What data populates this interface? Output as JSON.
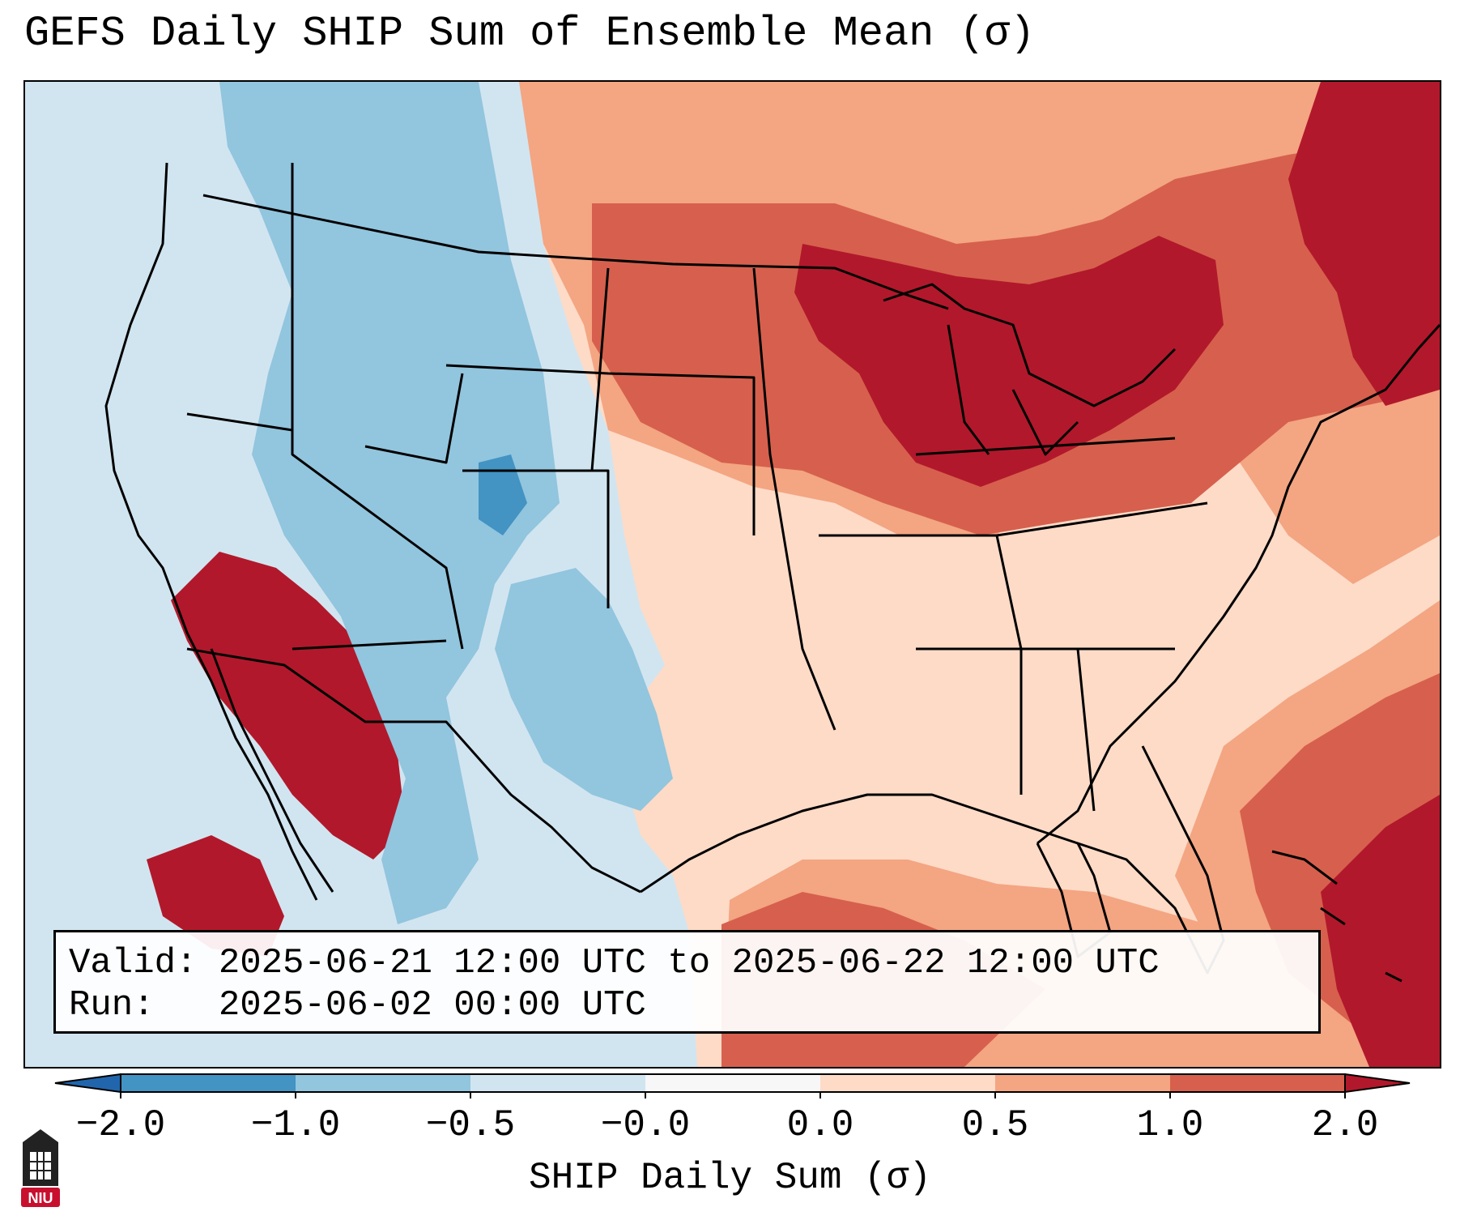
{
  "title": "GEFS Daily SHIP Sum of Ensemble Mean (σ)",
  "info": {
    "valid_label": "Valid:",
    "valid_value": "2025-06-21 12:00 UTC to 2025-06-22 12:00 UTC",
    "run_label": "Run:",
    "run_value": "2025-06-02 00:00 UTC"
  },
  "colorbar": {
    "label": "SHIP Daily Sum (σ)",
    "ticks": [
      "−2.0",
      "−1.0",
      "−0.5",
      "−0.0",
      "0.0",
      "0.5",
      "1.0",
      "2.0"
    ],
    "colors": [
      "#2166ac",
      "#4393c3",
      "#92c5de",
      "#d1e5f0",
      "#f7f7f7",
      "#fddbc7",
      "#f4a582",
      "#d6604d",
      "#b2182b"
    ]
  },
  "logo": {
    "text": "NIU",
    "color": "#c8102e"
  }
}
